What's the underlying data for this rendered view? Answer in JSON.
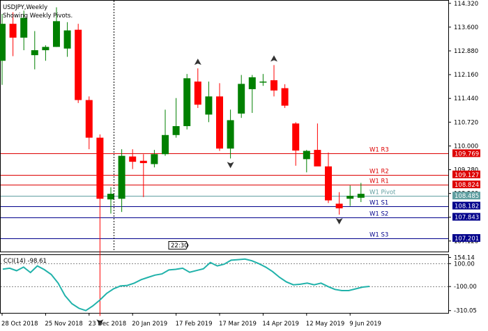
{
  "header": {
    "symbol_line": "USDJPY,Weekly",
    "subtitle": "Showing Weekly Pivots."
  },
  "price_axis": {
    "ticks": [
      "114.320",
      "113.600",
      "112.880",
      "112.160",
      "111.440",
      "110.720",
      "110.000",
      "109.280",
      "108.560",
      "107.840",
      "107.120"
    ]
  },
  "pivots": [
    {
      "label": "W1 R3",
      "price": 109.769,
      "price_label": "109.769",
      "color": "#dd0000"
    },
    {
      "label": "W1 R2",
      "price": 109.127,
      "price_label": "109.127",
      "color": "#dd0000"
    },
    {
      "label": "W1 R1",
      "price": 108.824,
      "price_label": "108.824",
      "color": "#dd0000"
    },
    {
      "label": "W1 Pivot",
      "price": 108.485,
      "price_label": "108.485",
      "color": "#5f9ea0"
    },
    {
      "label": "W1 S1",
      "price": 108.182,
      "price_label": "108.182",
      "color": "#00008b"
    },
    {
      "label": "W1 S2",
      "price": 107.843,
      "price_label": "107.843",
      "color": "#00008b"
    },
    {
      "label": "W1 S3",
      "price": 107.201,
      "price_label": "107.201",
      "color": "#00008b"
    }
  ],
  "time_marker": "22:30",
  "cci": {
    "label": "CCI(14) -98.61",
    "ticks": [
      "154.14",
      "100.00",
      "-100.00",
      "-310.05"
    ]
  },
  "time_axis": [
    "28 Oct 2018",
    "25 Nov 2018",
    "23 Dec 2018",
    "20 Jan 2019",
    "17 Feb 2019",
    "17 Mar 2019",
    "14 Apr 2019",
    "12 May 2019",
    "9 Jun 2019"
  ],
  "colors": {
    "bull": "#008000",
    "bear": "#ff0000",
    "cci_line": "#20b2aa",
    "grid": "#000000"
  },
  "chart_data": {
    "type": "candlestick",
    "timeframe": "weekly",
    "candles": [
      {
        "o": 112.58,
        "h": 114.0,
        "l": 111.85,
        "c": 113.7
      },
      {
        "o": 113.7,
        "h": 114.05,
        "l": 112.72,
        "c": 113.28
      },
      {
        "o": 113.28,
        "h": 114.1,
        "l": 112.9,
        "c": 113.88
      },
      {
        "o": 112.75,
        "h": 113.48,
        "l": 112.32,
        "c": 112.9
      },
      {
        "o": 112.9,
        "h": 113.05,
        "l": 112.58,
        "c": 113.0
      },
      {
        "o": 113.0,
        "h": 114.2,
        "l": 113.0,
        "c": 113.78
      },
      {
        "o": 112.95,
        "h": 113.75,
        "l": 112.7,
        "c": 113.5
      },
      {
        "o": 113.52,
        "h": 113.7,
        "l": 111.3,
        "c": 111.39
      },
      {
        "o": 111.39,
        "h": 111.5,
        "l": 109.9,
        "c": 110.25
      },
      {
        "o": 110.25,
        "h": 110.35,
        "l": 104.85,
        "c": 108.4
      },
      {
        "o": 108.38,
        "h": 108.75,
        "l": 107.95,
        "c": 108.55
      },
      {
        "o": 108.4,
        "h": 109.9,
        "l": 108.0,
        "c": 109.7
      },
      {
        "o": 109.68,
        "h": 109.9,
        "l": 109.3,
        "c": 109.52
      },
      {
        "o": 109.55,
        "h": 109.75,
        "l": 108.45,
        "c": 109.48
      },
      {
        "o": 109.45,
        "h": 109.88,
        "l": 109.35,
        "c": 109.75
      },
      {
        "o": 109.75,
        "h": 111.1,
        "l": 109.7,
        "c": 110.33
      },
      {
        "o": 110.33,
        "h": 111.45,
        "l": 110.25,
        "c": 110.6
      },
      {
        "o": 110.6,
        "h": 112.18,
        "l": 110.5,
        "c": 112.05
      },
      {
        "o": 111.95,
        "h": 112.35,
        "l": 111.15,
        "c": 111.25
      },
      {
        "o": 110.95,
        "h": 111.95,
        "l": 110.72,
        "c": 111.5
      },
      {
        "o": 111.5,
        "h": 111.9,
        "l": 109.85,
        "c": 109.92
      },
      {
        "o": 109.92,
        "h": 111.1,
        "l": 109.62,
        "c": 110.78
      },
      {
        "o": 110.98,
        "h": 112.15,
        "l": 110.85,
        "c": 111.88
      },
      {
        "o": 111.72,
        "h": 112.15,
        "l": 111.0,
        "c": 112.08
      },
      {
        "o": 111.95,
        "h": 112.18,
        "l": 111.82,
        "c": 111.95
      },
      {
        "o": 111.99,
        "h": 112.45,
        "l": 111.5,
        "c": 111.68
      },
      {
        "o": 111.75,
        "h": 111.87,
        "l": 111.15,
        "c": 111.22
      },
      {
        "o": 110.68,
        "h": 110.72,
        "l": 109.4,
        "c": 109.86
      },
      {
        "o": 109.6,
        "h": 109.88,
        "l": 109.2,
        "c": 109.85
      },
      {
        "o": 109.88,
        "h": 110.68,
        "l": 109.4,
        "c": 109.38
      },
      {
        "o": 109.38,
        "h": 109.8,
        "l": 108.27,
        "c": 108.35
      },
      {
        "o": 108.25,
        "h": 108.6,
        "l": 107.92,
        "c": 108.11
      },
      {
        "o": 108.4,
        "h": 108.8,
        "l": 108.18,
        "c": 108.49
      },
      {
        "o": 108.43,
        "h": 108.88,
        "l": 108.3,
        "c": 108.55
      }
    ],
    "cci": [
      52,
      60,
      38,
      70,
      22,
      80,
      48,
      5,
      -70,
      -180,
      -250,
      -290,
      -310,
      -270,
      -220,
      -160,
      -120,
      -95,
      -90,
      -70,
      -40,
      -20,
      0,
      10,
      45,
      50,
      60,
      25,
      40,
      55,
      110,
      80,
      95,
      130,
      135,
      140,
      125,
      100,
      70,
      30,
      -20,
      -60,
      -85,
      -80,
      -70,
      -85,
      -70,
      -100,
      -125,
      -135,
      -135,
      -120,
      -105,
      -98.61
    ],
    "pivot_levels": {
      "R3": 109.769,
      "R2": 109.127,
      "R1": 108.824,
      "Pivot": 108.485,
      "S1": 108.182,
      "S2": 107.843,
      "S3": 107.201
    },
    "price_range": [
      106.8,
      114.4
    ],
    "cci_range": [
      -330,
      175
    ]
  }
}
